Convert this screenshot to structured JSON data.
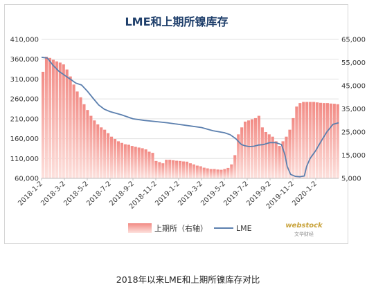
{
  "caption": "2018年以来LME和上期所镍库存对比",
  "watermark": {
    "brand": "webstock",
    "sub": "文华财经"
  },
  "colors": {
    "bar_top": "#f28a84",
    "bar_bottom": "#fde1dd",
    "line": "#5b7fae",
    "title": "#1f3f6b"
  },
  "chart_data": {
    "type": "area+line",
    "title": "LME和上期所镍库存",
    "x_labels": [
      "2018-1-2",
      "2018-3-2",
      "2018-5-2",
      "2018-7-2",
      "2018-9-2",
      "2018-11-2",
      "2019-1-2",
      "2019-3-2",
      "2019-5-2",
      "2019-7-2",
      "2019-9-2",
      "2019-11-2",
      "2020-1-2"
    ],
    "x_range": [
      0,
      26
    ],
    "y_left": {
      "min": 60000,
      "max": 410000,
      "ticks": [
        "60,000",
        "110,000",
        "160,000",
        "210,000",
        "260,000",
        "310,000",
        "360,000",
        "410,000"
      ]
    },
    "y_right": {
      "min": 5000,
      "max": 65000,
      "ticks": [
        "5,000",
        "15,000",
        "25,000",
        "35,000",
        "45,000",
        "55,000",
        "65,000"
      ]
    },
    "legend": "bottom-center",
    "series": [
      {
        "name": "上期所（右轴）",
        "kind": "bar-area",
        "axis": "right",
        "x": [
          0,
          0.3,
          0.6,
          0.9,
          1.2,
          1.5,
          1.8,
          2.1,
          2.4,
          2.7,
          3.0,
          3.3,
          3.6,
          3.9,
          4.2,
          4.5,
          4.8,
          5.1,
          5.4,
          5.7,
          6.0,
          6.3,
          6.6,
          6.9,
          7.2,
          7.5,
          7.8,
          8.1,
          8.4,
          8.7,
          9.0,
          9.3,
          9.6,
          9.9,
          10.2,
          10.5,
          10.8,
          11.1,
          11.4,
          11.7,
          12.0,
          12.3,
          12.6,
          12.9,
          13.2,
          13.5,
          13.8,
          14.1,
          14.4,
          14.7,
          15.0,
          15.3,
          15.6,
          15.9,
          16.2,
          16.5,
          16.8,
          17.1,
          17.4,
          17.7,
          18.0,
          18.3,
          18.6,
          18.9,
          19.2,
          19.5,
          19.8,
          20.1,
          20.4,
          20.7,
          21.0,
          21.3,
          21.6,
          21.9,
          22.2,
          22.5,
          22.8,
          23.1,
          23.4,
          23.7,
          24.0,
          24.3,
          24.6,
          24.9,
          25.2,
          25.5,
          25.8
        ],
        "values": [
          51000,
          57500,
          57000,
          56200,
          55500,
          55000,
          54200,
          52000,
          49000,
          45500,
          42500,
          40000,
          37000,
          34500,
          32000,
          30000,
          28300,
          27000,
          26000,
          24500,
          23000,
          22000,
          21000,
          20300,
          19700,
          19500,
          19000,
          18600,
          18300,
          18000,
          17500,
          16500,
          16000,
          12500,
          12000,
          11500,
          13000,
          13000,
          12800,
          12600,
          12500,
          12300,
          12200,
          11500,
          11000,
          10500,
          10200,
          9600,
          9300,
          9000,
          9000,
          8800,
          8700,
          9000,
          9500,
          11000,
          15000,
          24000,
          27000,
          29500,
          30000,
          30500,
          31000,
          32000,
          27000,
          25000,
          24000,
          23000,
          21000,
          19000,
          21000,
          23000,
          26000,
          31000,
          36000,
          37500,
          38000,
          38000,
          38000,
          38000,
          37800,
          37600,
          37500,
          37500,
          37300,
          37200,
          37000
        ]
      },
      {
        "name": "LME",
        "kind": "line",
        "axis": "left",
        "x": [
          0,
          0.5,
          1,
          1.5,
          2,
          2.5,
          3,
          3.5,
          4,
          4.5,
          5,
          5.5,
          6,
          7,
          8,
          9,
          10,
          11,
          12,
          13,
          14,
          15,
          16,
          16.5,
          17,
          17.5,
          17.8,
          18.2,
          18.6,
          19,
          19.4,
          20,
          20.5,
          21,
          21.3,
          21.5,
          21.8,
          22.2,
          22.6,
          22.8,
          23,
          23.2,
          23.5,
          24,
          24.5,
          25,
          25.5,
          26
        ],
        "values": [
          365000,
          363000,
          345000,
          330000,
          320000,
          310000,
          300000,
          295000,
          280000,
          262000,
          245000,
          234000,
          228000,
          220000,
          210000,
          206000,
          203000,
          200000,
          196000,
          192000,
          188000,
          180000,
          175000,
          170000,
          160000,
          145000,
          142000,
          140000,
          141000,
          144000,
          145000,
          150000,
          150000,
          145000,
          120000,
          90000,
          70000,
          65000,
          64000,
          65000,
          66000,
          90000,
          110000,
          130000,
          155000,
          178000,
          196000,
          200000
        ]
      }
    ]
  }
}
